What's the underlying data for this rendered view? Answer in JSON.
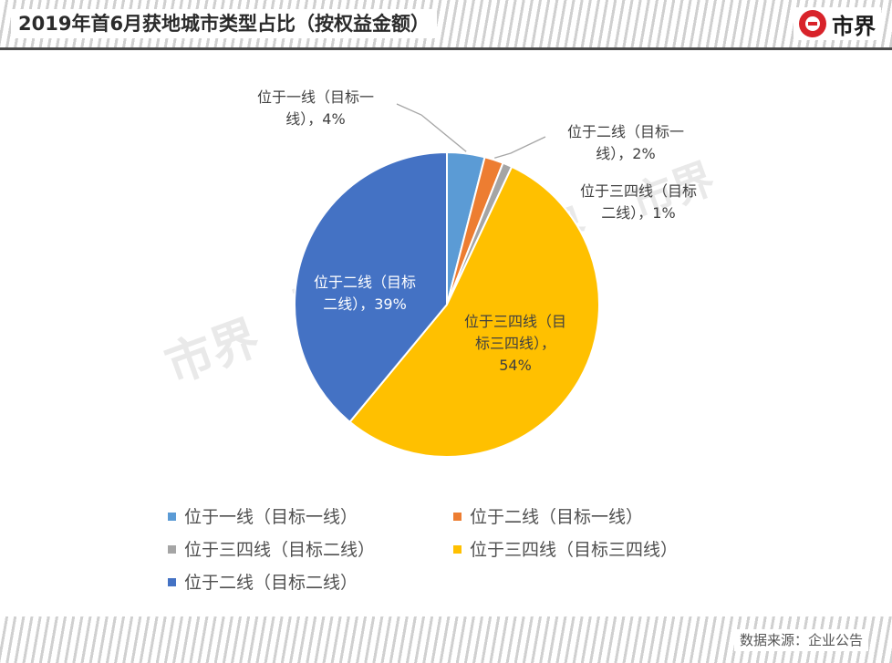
{
  "header": {
    "title": "2019年首6月获地城市类型占比（按权益金额）",
    "brand_text": "市界"
  },
  "footer": {
    "source": "数据来源：企业公告"
  },
  "watermark": "市界",
  "chart_data": {
    "type": "pie",
    "title": "2019年首6月获地城市类型占比（按权益金额）",
    "start_angle": "12 o'clock, clockwise",
    "legend_position": "bottom",
    "slices": [
      {
        "name": "位于一线（目标一线）",
        "value": 4,
        "label_lines": [
          "位于一线（目标一",
          "线），4%"
        ],
        "color": "#5b9bd5",
        "label_color": "#404040"
      },
      {
        "name": "位于二线（目标一线）",
        "value": 2,
        "label_lines": [
          "位于二线（目标一",
          "线），2%"
        ],
        "color": "#ed7d31",
        "label_color": "#404040"
      },
      {
        "name": "位于三四线（目标二线）",
        "value": 1,
        "label_lines": [
          "位于三四线（目标",
          "二线），1%"
        ],
        "color": "#a5a5a5",
        "label_color": "#404040"
      },
      {
        "name": "位于三四线（目标三四线）",
        "value": 54,
        "label_lines": [
          "位于三四线（目",
          "标三四线），",
          "54%"
        ],
        "color": "#ffc000",
        "label_color": "#404040"
      },
      {
        "name": "位于二线（目标二线）",
        "value": 39,
        "label_lines": [
          "位于二线（目标",
          "二线），39%"
        ],
        "color": "#4472c4",
        "label_color": "#ffffff"
      }
    ]
  }
}
